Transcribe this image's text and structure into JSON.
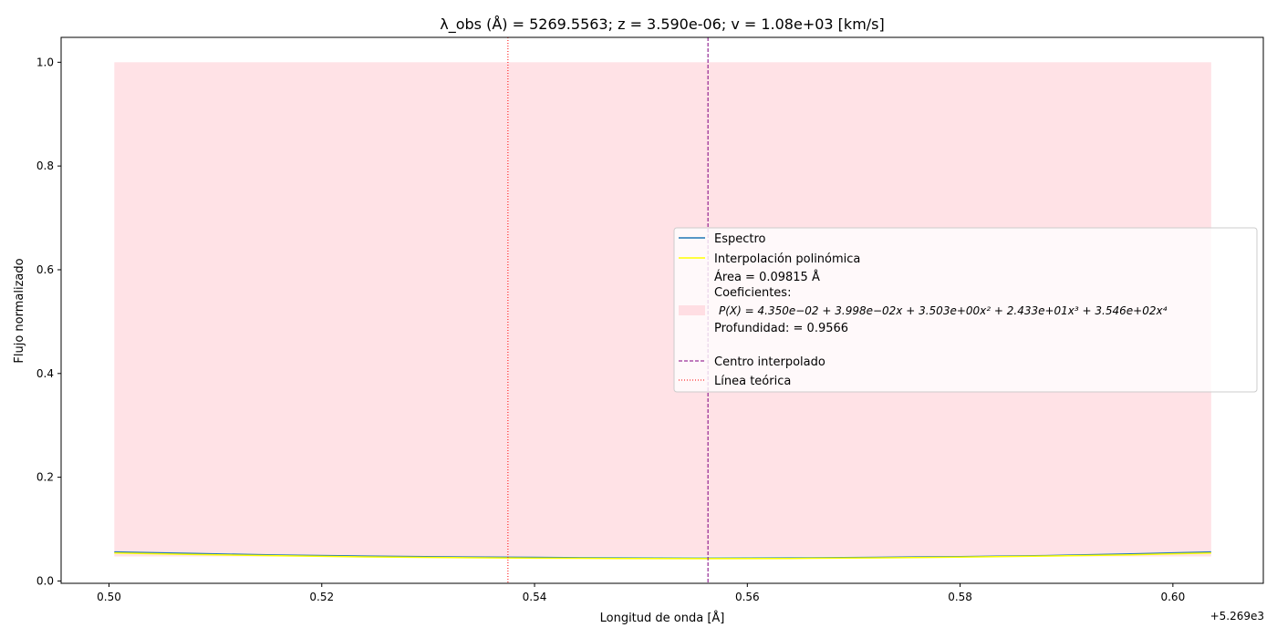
{
  "chart_data": {
    "type": "line",
    "title": "λ_obs (Å) = 5269.5563; z = 3.590e-06; v = 1.08e+03 [km/s]",
    "xlabel": "Longitud de onda [Å]",
    "ylabel": "Flujo normalizado",
    "x_offset_label": "+5.269e3",
    "xlim": [
      0.4955,
      0.6085
    ],
    "ylim": [
      -0.0045,
      1.048
    ],
    "x_ticks": [
      0.5,
      0.52,
      0.54,
      0.56,
      0.58,
      0.6
    ],
    "x_tick_labels": [
      "0.50",
      "0.52",
      "0.54",
      "0.56",
      "0.58",
      "0.60"
    ],
    "y_ticks": [
      0.0,
      0.2,
      0.4,
      0.6,
      0.8,
      1.0
    ],
    "y_tick_labels": [
      "0.0",
      "0.2",
      "0.4",
      "0.6",
      "0.8",
      "1.0"
    ],
    "grid": false,
    "legend_position": "center-right",
    "series": [
      {
        "name": "Espectro",
        "color": "#1f77b4",
        "x": [
          0.5005,
          0.508,
          0.516,
          0.524,
          0.532,
          0.54,
          0.548,
          0.556,
          0.564,
          0.572,
          0.58,
          0.588,
          0.596,
          0.6036
        ],
        "y": [
          0.056,
          0.053,
          0.05,
          0.048,
          0.0465,
          0.0455,
          0.0445,
          0.044,
          0.0445,
          0.0455,
          0.047,
          0.049,
          0.052,
          0.056
        ]
      },
      {
        "name": "Interpolación polinómica",
        "color": "#ffff00",
        "x": [
          0.5005,
          0.508,
          0.516,
          0.524,
          0.532,
          0.54,
          0.548,
          0.556,
          0.564,
          0.572,
          0.58,
          0.588,
          0.596,
          0.6036
        ],
        "y": [
          0.054,
          0.051,
          0.0485,
          0.0465,
          0.045,
          0.044,
          0.0435,
          0.0432,
          0.0435,
          0.0445,
          0.046,
          0.048,
          0.0505,
          0.054
        ]
      }
    ],
    "fill_region": {
      "color": "#ffb6c1",
      "x_start": 0.5005,
      "x_end": 0.6036,
      "y_top": 1.0
    },
    "vlines": [
      {
        "name": "Centro interpolado",
        "x": 0.5563,
        "color": "#800080",
        "style": "dashed"
      },
      {
        "name": "Línea teórica",
        "x": 0.5375,
        "color": "#ff0000",
        "style": "dotted"
      }
    ],
    "legend": {
      "espectro": "Espectro",
      "interp": "Interpolación polinómica",
      "area": "Área = 0.09815 Å",
      "coef_label": "Coeficientes:",
      "poly": "P(X) = 4.350e−02 + 3.998e−02x + 3.503e+00x² + 2.433e+01x³ + 3.546e+02x⁴",
      "depth": "Profundidad: = 0.9566",
      "centro": "Centro interpolado",
      "teorica": "Línea teórica"
    }
  }
}
